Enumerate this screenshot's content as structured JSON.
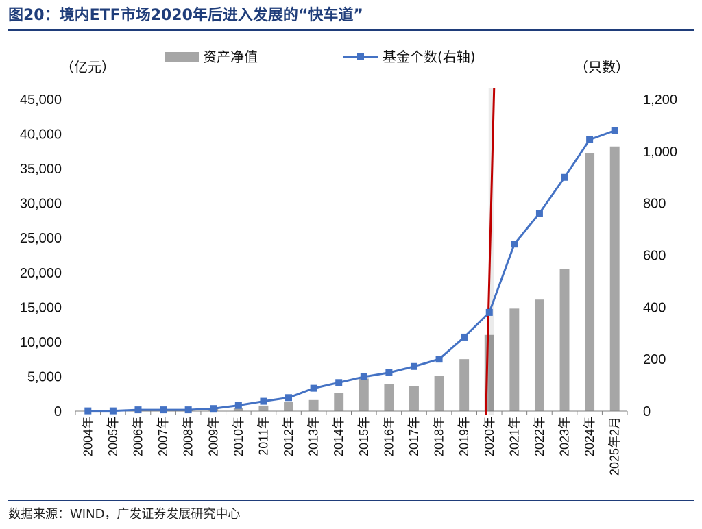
{
  "figure": {
    "number": "图20：",
    "title": "境内ETF市场2020年后进入发展的“快车道”",
    "source": "数据来源：WIND，广发证券发展研究中心"
  },
  "chart_data": {
    "type": "bar",
    "title": "",
    "left_axis": {
      "unit": "（亿元）",
      "range": [
        0,
        45000
      ],
      "ticks": [
        "0",
        "5,000",
        "10,000",
        "15,000",
        "20,000",
        "25,000",
        "30,000",
        "35,000",
        "40,000",
        "45,000"
      ]
    },
    "right_axis": {
      "unit": "（只数）",
      "range": [
        0,
        1200
      ],
      "ticks": [
        "0",
        "200",
        "400",
        "600",
        "800",
        "1,000",
        "1,200"
      ]
    },
    "categories": [
      "2004年",
      "2005年",
      "2006年",
      "2007年",
      "2008年",
      "2009年",
      "2010年",
      "2011年",
      "2012年",
      "2013年",
      "2014年",
      "2015年",
      "2016年",
      "2017年",
      "2018年",
      "2019年",
      "2020年",
      "2021年",
      "2022年",
      "2023年",
      "2024年",
      "2025年2月"
    ],
    "series": [
      {
        "name": "资产净值",
        "type": "bar",
        "axis": "left",
        "color": "#a6a6a6",
        "values": [
          40,
          100,
          250,
          300,
          200,
          450,
          400,
          800,
          1300,
          1600,
          2600,
          4700,
          3900,
          3600,
          5100,
          7500,
          11000,
          14800,
          16100,
          20500,
          37200,
          38200
        ]
      },
      {
        "name": "基金个数(右轴)",
        "type": "line",
        "axis": "right",
        "color": "#4472c4",
        "values": [
          1,
          1,
          5,
          5,
          5,
          10,
          22,
          38,
          52,
          88,
          110,
          132,
          148,
          172,
          200,
          285,
          380,
          643,
          762,
          900,
          1045,
          1080
        ]
      }
    ],
    "legend_position": "top-center",
    "marker_line": {
      "category": "2020年",
      "color": "#c00000"
    },
    "grid": false
  }
}
